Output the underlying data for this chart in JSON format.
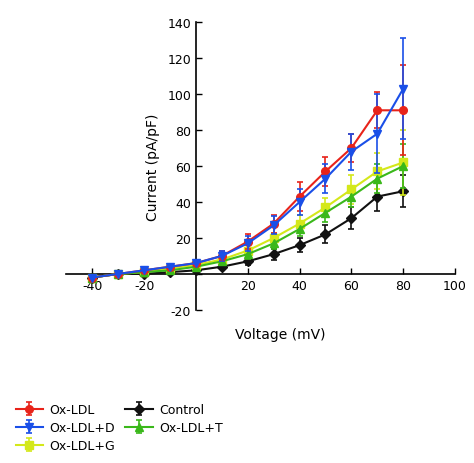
{
  "voltage": [
    -40,
    -30,
    -20,
    -10,
    0,
    10,
    20,
    30,
    40,
    50,
    60,
    70,
    80
  ],
  "series": {
    "Ox-LDL": {
      "current": [
        -2,
        0,
        2,
        4,
        6,
        10,
        18,
        28,
        43,
        57,
        70,
        91,
        91
      ],
      "yerr": [
        1.5,
        1.5,
        1.5,
        1.5,
        1.5,
        3,
        4,
        5,
        8,
        8,
        8,
        10,
        25
      ],
      "color": "#e8231a",
      "marker": "o",
      "markersize": 5.5,
      "label": "Ox-LDL",
      "zorder": 5
    },
    "Ox-LDL+G": {
      "current": [
        -2,
        0,
        1,
        3,
        5,
        8,
        13,
        20,
        28,
        37,
        47,
        57,
        62
      ],
      "yerr": [
        1,
        1,
        1,
        1,
        1.5,
        2,
        3,
        3,
        5,
        5,
        8,
        10,
        18
      ],
      "color": "#d4e81a",
      "marker": "s",
      "markersize": 5.5,
      "label": "Ox-LDL+G",
      "zorder": 4
    },
    "Ox-LDL+T": {
      "current": [
        -2,
        0,
        1,
        2,
        4,
        7,
        11,
        17,
        25,
        34,
        43,
        53,
        60
      ],
      "yerr": [
        1,
        1,
        1,
        1,
        1.5,
        2,
        2.5,
        3,
        4,
        5,
        6,
        8,
        12
      ],
      "color": "#3ab81a",
      "marker": "^",
      "markersize": 5.5,
      "label": "Ox-LDL+T",
      "zorder": 4
    },
    "Ox-LDL+D": {
      "current": [
        -2,
        0,
        2,
        4,
        6,
        10,
        17,
        27,
        40,
        53,
        68,
        78,
        103
      ],
      "yerr": [
        1.5,
        1.5,
        1.5,
        1.5,
        1.5,
        3,
        4,
        5,
        7,
        8,
        10,
        22,
        28
      ],
      "color": "#1a4fe8",
      "marker": "v",
      "markersize": 5.5,
      "label": "Ox-LDL+D",
      "zorder": 5
    },
    "Control": {
      "current": [
        -2,
        0,
        0,
        1,
        2,
        4,
        7,
        11,
        16,
        22,
        31,
        43,
        46
      ],
      "yerr": [
        1,
        1,
        1,
        1,
        1,
        1.5,
        2,
        3,
        4,
        5,
        6,
        8,
        9
      ],
      "color": "#111111",
      "marker": "D",
      "markersize": 5,
      "label": "Control",
      "zorder": 3
    }
  },
  "xlim": [
    -50,
    100
  ],
  "ylim": [
    -20,
    140
  ],
  "xticks": [
    -40,
    -20,
    20,
    40,
    60,
    80,
    100
  ],
  "yticks": [
    -20,
    0,
    20,
    40,
    60,
    80,
    100,
    120,
    140
  ],
  "ytick_labels": [
    "-20",
    "",
    "20",
    "40",
    "60",
    "80",
    "100",
    "120",
    "140"
  ],
  "xlabel": "Voltage (mV)",
  "ylabel": "Current (pA/pF)",
  "legend_order": [
    "Ox-LDL",
    "Ox-LDL+G",
    "Ox-LDL+T",
    "Ox-LDL+D",
    "Control"
  ]
}
